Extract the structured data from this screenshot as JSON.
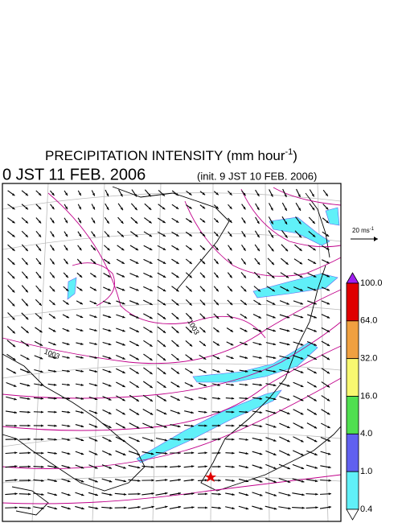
{
  "header": {
    "title": "PRECIPITATION INTENSITY (mm hour",
    "title_superscript": "-1",
    "title_end": ")",
    "valid_time": "0 JST 11 FEB. 2006",
    "init_time": "(init. 9 JST 10 FEB. 2006)"
  },
  "map": {
    "contour_labels": [
      "1003",
      "1003"
    ],
    "reference_vector": {
      "label": "20 ms",
      "superscript": "-1"
    }
  },
  "colorbar": {
    "labels": [
      "100.0",
      "64.0",
      "32.0",
      "16.0",
      "4.0",
      "1.0",
      "0.4"
    ],
    "over_color": "#a020f0",
    "colors": [
      "#e00000",
      "#f0a040",
      "#f8f870",
      "#50e050",
      "#6060f0",
      "#60f0f8"
    ],
    "under_color": "#ffffff"
  }
}
